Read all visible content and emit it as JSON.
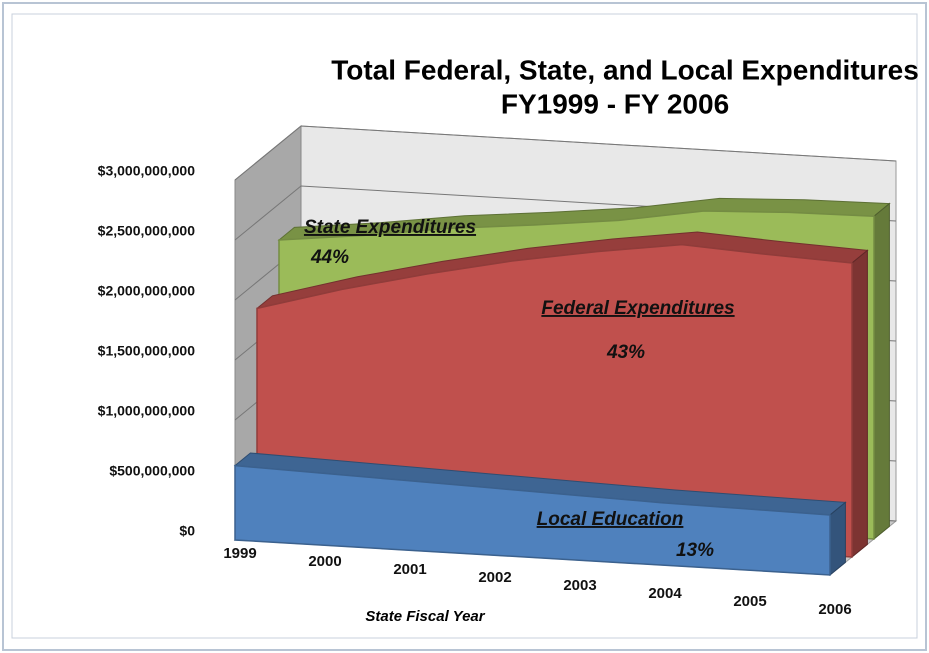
{
  "chart_data": {
    "type": "area3d",
    "title": "Total Federal, State, and Local Expenditures",
    "subtitle": "FY1999 - FY 2006",
    "x_label": "State Fiscal Year",
    "categories": [
      "1999",
      "2000",
      "2001",
      "2002",
      "2003",
      "2004",
      "2005",
      "2006"
    ],
    "series": [
      {
        "name": "State Expenditures",
        "color": "#9bbb59",
        "values": [
          2200000000,
          2280000000,
          2380000000,
          2450000000,
          2530000000,
          2650000000,
          2680000000,
          2690000000
        ]
      },
      {
        "name": "Federal Expenditures",
        "color": "#c0504d",
        "values": [
          1780000000,
          1980000000,
          2150000000,
          2300000000,
          2420000000,
          2520000000,
          2480000000,
          2450000000
        ]
      },
      {
        "name": "Local Education",
        "color": "#4f81bd",
        "values": [
          620000000,
          600000000,
          580000000,
          560000000,
          540000000,
          520000000,
          510000000,
          500000000
        ]
      }
    ],
    "annotations": [
      "State Expenditures",
      "44%",
      "Federal Expenditures",
      "43%",
      "Local Education",
      "13%"
    ],
    "ylim": [
      0,
      3000000000
    ],
    "yticks": [
      {
        "value": 0,
        "label": "$0"
      },
      {
        "value": 500000000,
        "label": "$500,000,000"
      },
      {
        "value": 1000000000,
        "label": "$1,000,000,000"
      },
      {
        "value": 1500000000,
        "label": "$1,500,000,000"
      },
      {
        "value": 2000000000,
        "label": "$2,000,000,000"
      },
      {
        "value": 2500000000,
        "label": "$2,500,000,000"
      },
      {
        "value": 3000000000,
        "label": "$3,000,000,000"
      }
    ],
    "grid": true
  }
}
